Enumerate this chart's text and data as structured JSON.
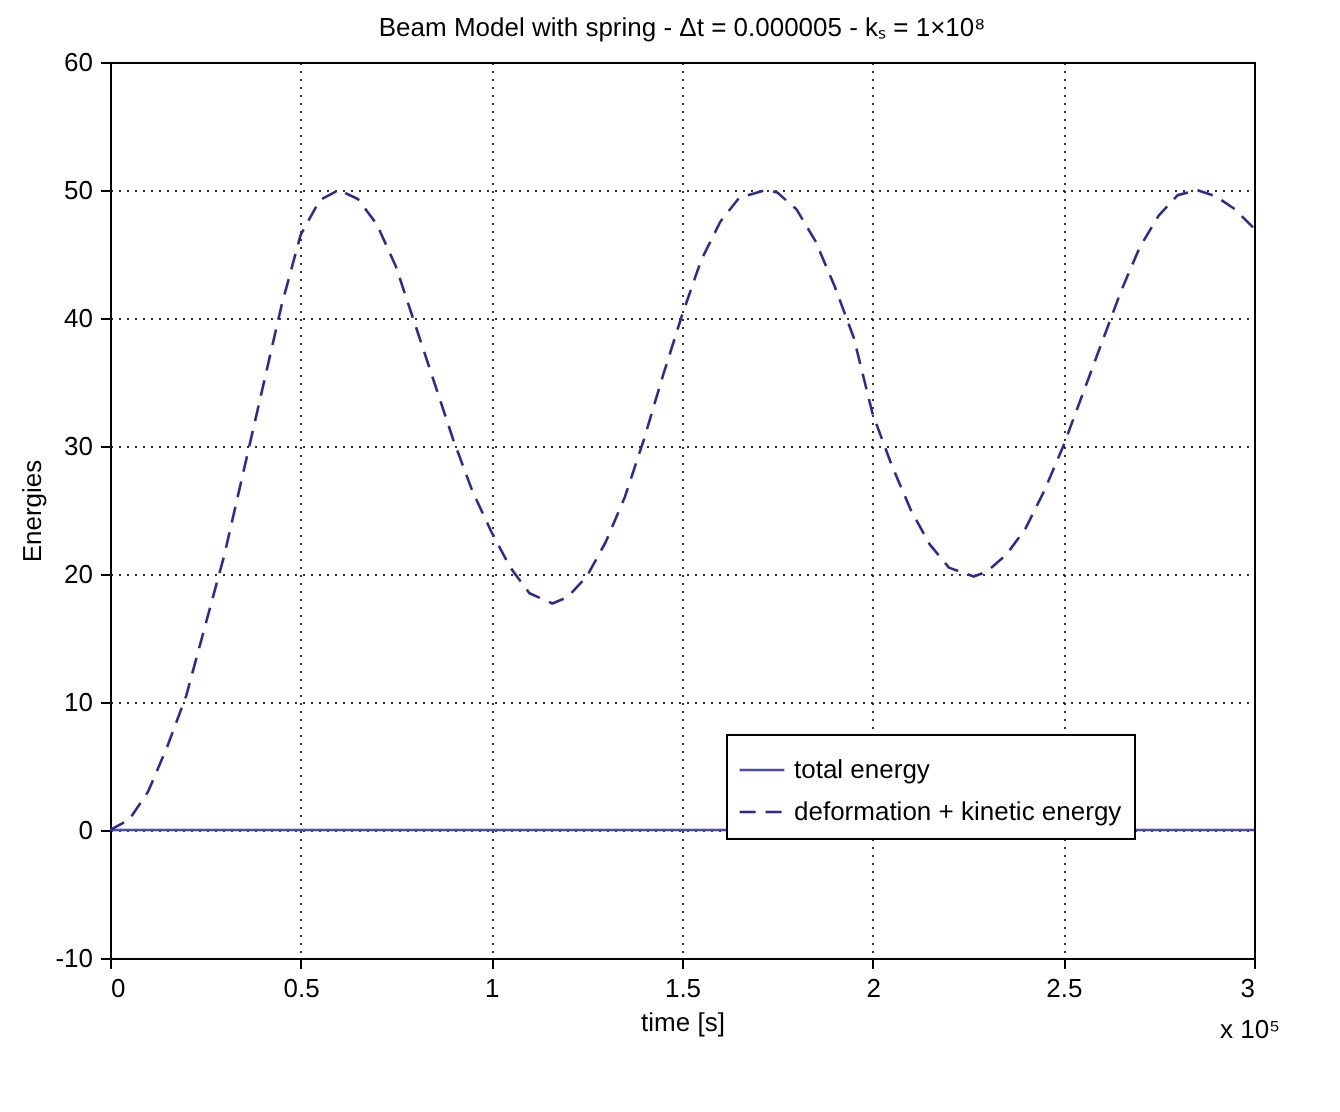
{
  "chart_data": {
    "type": "line",
    "title": "Beam Model with spring - Δt = 0.000005 - kₛ = 1×10⁸",
    "xlabel": "time [s]",
    "ylabel": "Energies",
    "annotations": [
      "x 10⁵"
    ],
    "xlim": [
      0,
      3
    ],
    "xticks": [
      0,
      0.5,
      1,
      1.5,
      2,
      2.5,
      3
    ],
    "ylim": [
      -10,
      60
    ],
    "yticks": [
      -10,
      0,
      10,
      20,
      30,
      40,
      50,
      60
    ],
    "grid": true,
    "legend": "bottom right",
    "marker": "none",
    "series": [
      {
        "name": "total energy",
        "color": "#4a4aa8",
        "line_style": "solid",
        "x": [
          0,
          3
        ],
        "values": [
          0,
          0
        ]
      },
      {
        "name": "deformation + kinetic energy",
        "color": "#2b2b8f",
        "line_style": "dashed",
        "x": [
          0,
          0.05,
          0.1,
          0.15,
          0.2,
          0.25,
          0.3,
          0.35,
          0.4,
          0.45,
          0.5,
          0.55,
          0.6,
          0.65,
          0.7,
          0.75,
          0.8,
          0.85,
          0.9,
          0.95,
          1.0,
          1.05,
          1.1,
          1.16,
          1.2,
          1.25,
          1.3,
          1.35,
          1.4,
          1.45,
          1.5,
          1.55,
          1.6,
          1.65,
          1.72,
          1.75,
          1.8,
          1.85,
          1.9,
          1.95,
          2.0,
          2.05,
          2.1,
          2.15,
          2.2,
          2.265,
          2.3,
          2.35,
          2.4,
          2.45,
          2.5,
          2.55,
          2.6,
          2.65,
          2.7,
          2.75,
          2.8,
          2.85,
          2.9,
          2.95,
          3.0
        ],
        "values": [
          0,
          0.8,
          3,
          6.5,
          10.5,
          16,
          21.5,
          28,
          34.5,
          41,
          46.5,
          49.2,
          50,
          49.3,
          47.3,
          44,
          39.5,
          35,
          30.5,
          26.5,
          23.3,
          20.5,
          18.5,
          17.7,
          18.2,
          19.8,
          22.5,
          26,
          30.5,
          35.5,
          40.2,
          44.5,
          47.5,
          49.4,
          50,
          49.8,
          48.5,
          46,
          42.5,
          38.5,
          32.5,
          28.5,
          25,
          22.3,
          20.5,
          19.8,
          20.2,
          21.5,
          23.5,
          26.5,
          30,
          34,
          38,
          42,
          45.5,
          48,
          49.6,
          50,
          49.5,
          48.5,
          47
        ]
      }
    ]
  }
}
